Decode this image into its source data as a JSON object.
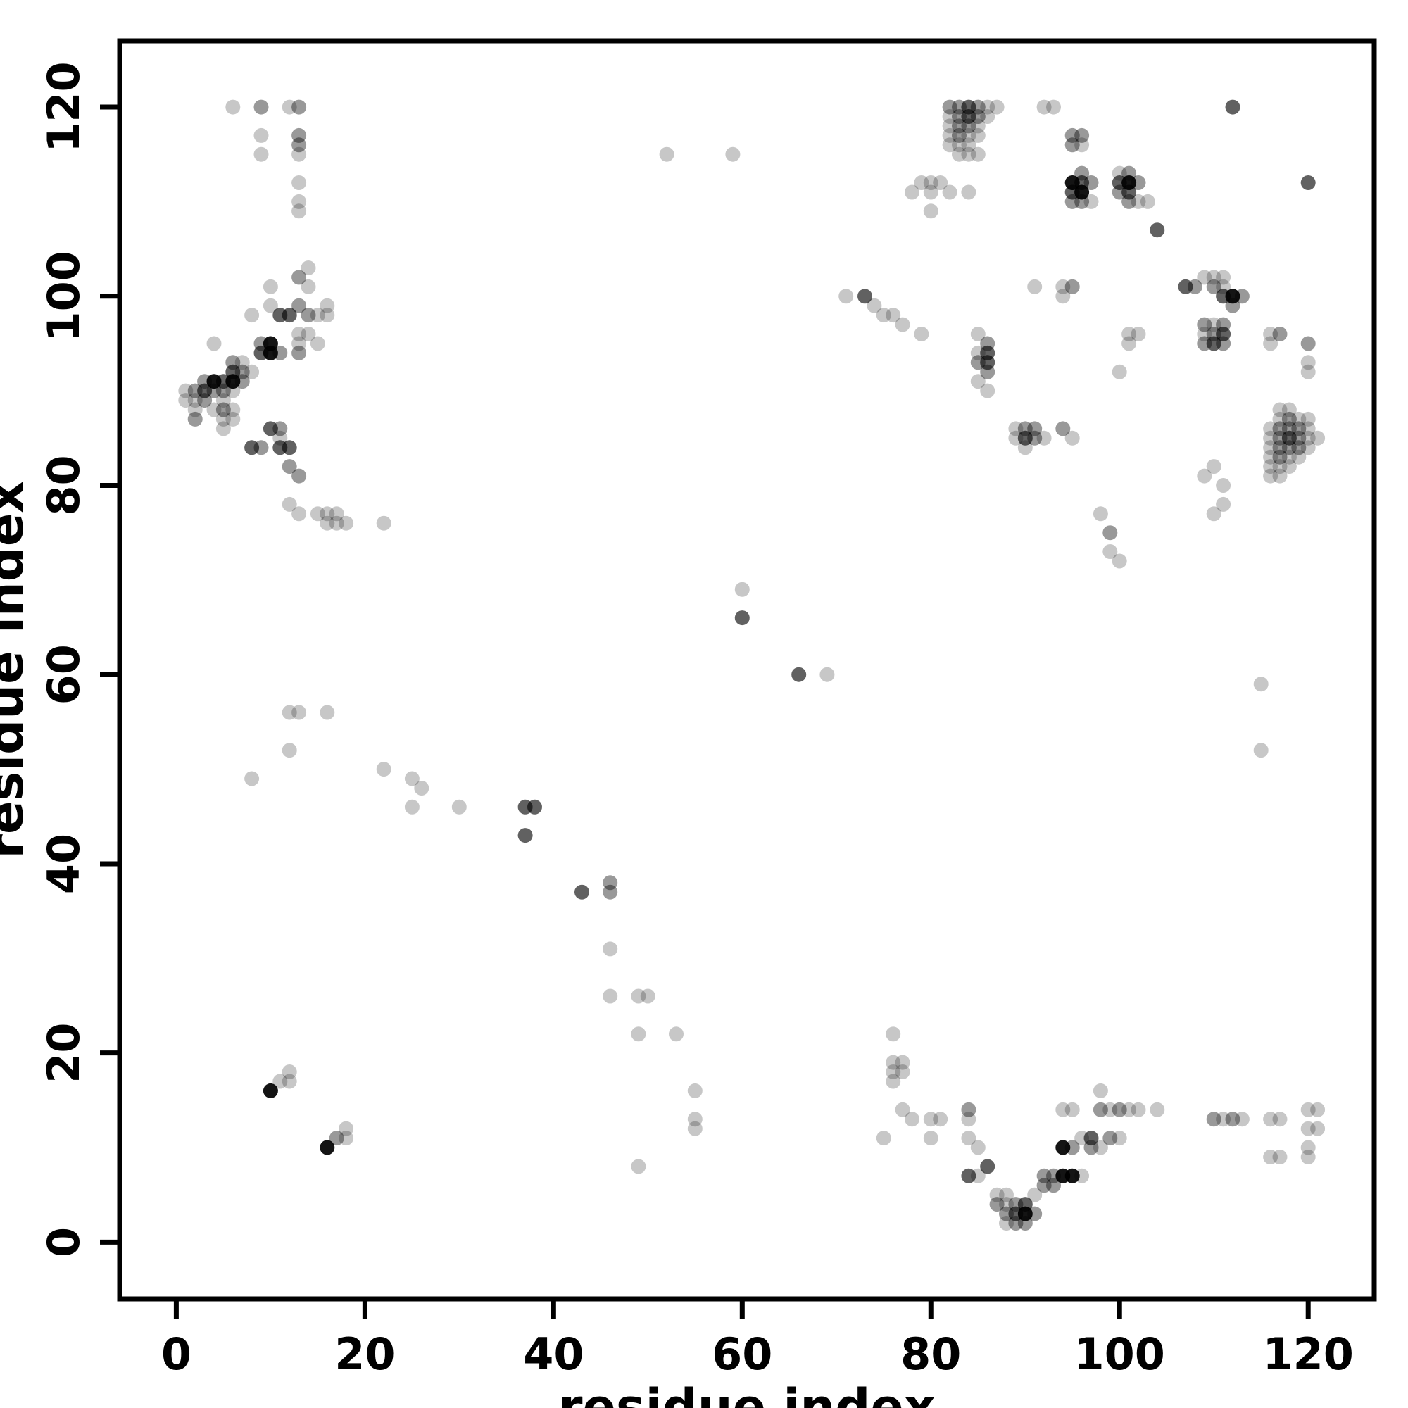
{
  "chart_data": {
    "type": "scatter",
    "title": "",
    "xlabel": "residue index",
    "ylabel": "residue index",
    "xlim": [
      -6,
      127
    ],
    "ylim": [
      -6,
      127
    ],
    "xticks": [
      0,
      20,
      40,
      60,
      80,
      100,
      120
    ],
    "yticks": [
      0,
      20,
      40,
      60,
      80,
      100,
      120
    ],
    "grid": false,
    "legend": "none",
    "point_color": "#000000",
    "point_radius_px": 10.5,
    "opacity_levels": [
      0.22,
      0.4,
      0.62,
      0.92
    ],
    "points": [
      [
        6,
        120,
        0
      ],
      [
        9,
        120,
        1
      ],
      [
        12,
        120,
        0
      ],
      [
        13,
        120,
        1
      ],
      [
        9,
        117,
        0
      ],
      [
        13,
        117,
        1
      ],
      [
        9,
        115,
        0
      ],
      [
        13,
        116,
        1
      ],
      [
        13,
        115,
        0
      ],
      [
        13,
        112,
        0
      ],
      [
        13,
        110,
        0
      ],
      [
        13,
        109,
        0
      ],
      [
        14,
        103,
        0
      ],
      [
        13,
        102,
        1
      ],
      [
        10,
        101,
        0
      ],
      [
        14,
        101,
        0
      ],
      [
        10,
        99,
        0
      ],
      [
        13,
        99,
        1
      ],
      [
        16,
        99,
        0
      ],
      [
        8,
        98,
        0
      ],
      [
        11,
        98,
        2
      ],
      [
        12,
        98,
        2
      ],
      [
        14,
        98,
        1
      ],
      [
        15,
        98,
        0
      ],
      [
        16,
        98,
        0
      ],
      [
        13,
        96,
        0
      ],
      [
        14,
        96,
        0
      ],
      [
        4,
        95,
        0
      ],
      [
        9,
        95,
        1
      ],
      [
        10,
        95,
        3
      ],
      [
        13,
        95,
        0
      ],
      [
        15,
        95,
        0
      ],
      [
        9,
        94,
        2
      ],
      [
        10,
        94,
        3
      ],
      [
        11,
        94,
        1
      ],
      [
        13,
        94,
        1
      ],
      [
        6,
        93,
        1
      ],
      [
        7,
        93,
        0
      ],
      [
        6,
        92,
        2
      ],
      [
        7,
        92,
        1
      ],
      [
        8,
        92,
        0
      ],
      [
        3,
        91,
        1
      ],
      [
        4,
        91,
        3
      ],
      [
        5,
        91,
        2
      ],
      [
        6,
        91,
        3
      ],
      [
        7,
        91,
        1
      ],
      [
        1,
        90,
        0
      ],
      [
        2,
        90,
        1
      ],
      [
        3,
        90,
        2
      ],
      [
        4,
        90,
        1
      ],
      [
        5,
        90,
        1
      ],
      [
        6,
        90,
        0
      ],
      [
        1,
        89,
        0
      ],
      [
        2,
        89,
        0
      ],
      [
        3,
        89,
        1
      ],
      [
        5,
        89,
        0
      ],
      [
        2,
        88,
        0
      ],
      [
        4,
        88,
        0
      ],
      [
        5,
        88,
        1
      ],
      [
        6,
        88,
        0
      ],
      [
        2,
        87,
        1
      ],
      [
        5,
        87,
        0
      ],
      [
        6,
        87,
        0
      ],
      [
        5,
        86,
        0
      ],
      [
        10,
        86,
        2
      ],
      [
        11,
        86,
        1
      ],
      [
        11,
        85,
        0
      ],
      [
        8,
        84,
        2
      ],
      [
        9,
        84,
        1
      ],
      [
        11,
        84,
        2
      ],
      [
        12,
        84,
        2
      ],
      [
        12,
        82,
        1
      ],
      [
        13,
        81,
        1
      ],
      [
        12,
        78,
        0
      ],
      [
        13,
        77,
        0
      ],
      [
        15,
        77,
        0
      ],
      [
        16,
        77,
        0
      ],
      [
        17,
        77,
        0
      ],
      [
        16,
        76,
        0
      ],
      [
        17,
        76,
        0
      ],
      [
        18,
        76,
        0
      ],
      [
        22,
        76,
        0
      ],
      [
        12,
        56,
        0
      ],
      [
        13,
        56,
        0
      ],
      [
        16,
        56,
        0
      ],
      [
        12,
        52,
        0
      ],
      [
        8,
        49,
        0
      ],
      [
        22,
        50,
        0
      ],
      [
        25,
        49,
        0
      ],
      [
        26,
        48,
        0
      ],
      [
        25,
        46,
        0
      ],
      [
        30,
        46,
        0
      ],
      [
        37,
        46,
        2
      ],
      [
        38,
        46,
        2
      ],
      [
        37,
        43,
        2
      ],
      [
        43,
        37,
        2
      ],
      [
        46,
        38,
        1
      ],
      [
        46,
        37,
        1
      ],
      [
        46,
        31,
        0
      ],
      [
        46,
        26,
        0
      ],
      [
        49,
        26,
        0
      ],
      [
        50,
        26,
        0
      ],
      [
        49,
        22,
        0
      ],
      [
        53,
        22,
        0
      ],
      [
        55,
        16,
        0
      ],
      [
        55,
        13,
        0
      ],
      [
        55,
        12,
        0
      ],
      [
        49,
        8,
        0
      ],
      [
        52,
        115,
        0
      ],
      [
        59,
        115,
        0
      ],
      [
        60,
        69,
        0
      ],
      [
        60,
        66,
        2
      ],
      [
        66,
        60,
        2
      ],
      [
        69,
        60,
        0
      ],
      [
        10,
        16,
        3
      ],
      [
        11,
        17,
        0
      ],
      [
        12,
        18,
        0
      ],
      [
        12,
        17,
        0
      ],
      [
        16,
        10,
        3
      ],
      [
        17,
        11,
        1
      ],
      [
        18,
        12,
        0
      ],
      [
        18,
        11,
        0
      ],
      [
        82,
        120,
        1
      ],
      [
        83,
        120,
        1
      ],
      [
        84,
        120,
        2
      ],
      [
        85,
        120,
        1
      ],
      [
        86,
        120,
        0
      ],
      [
        87,
        120,
        0
      ],
      [
        82,
        119,
        0
      ],
      [
        83,
        119,
        1
      ],
      [
        84,
        119,
        2
      ],
      [
        85,
        119,
        1
      ],
      [
        86,
        119,
        0
      ],
      [
        82,
        118,
        0
      ],
      [
        83,
        118,
        1
      ],
      [
        84,
        118,
        1
      ],
      [
        85,
        118,
        0
      ],
      [
        82,
        117,
        0
      ],
      [
        83,
        117,
        1
      ],
      [
        84,
        117,
        0
      ],
      [
        85,
        117,
        0
      ],
      [
        82,
        116,
        0
      ],
      [
        83,
        116,
        0
      ],
      [
        84,
        116,
        0
      ],
      [
        83,
        115,
        0
      ],
      [
        84,
        115,
        0
      ],
      [
        85,
        115,
        0
      ],
      [
        92,
        120,
        0
      ],
      [
        93,
        120,
        0
      ],
      [
        95,
        117,
        1
      ],
      [
        96,
        117,
        1
      ],
      [
        95,
        116,
        1
      ],
      [
        96,
        116,
        0
      ],
      [
        96,
        113,
        1
      ],
      [
        95,
        112,
        3
      ],
      [
        96,
        112,
        2
      ],
      [
        97,
        112,
        1
      ],
      [
        95,
        111,
        2
      ],
      [
        96,
        111,
        3
      ],
      [
        95,
        110,
        1
      ],
      [
        96,
        110,
        1
      ],
      [
        97,
        110,
        0
      ],
      [
        79,
        112,
        0
      ],
      [
        80,
        112,
        0
      ],
      [
        81,
        112,
        0
      ],
      [
        78,
        111,
        0
      ],
      [
        80,
        111,
        0
      ],
      [
        82,
        111,
        0
      ],
      [
        84,
        111,
        0
      ],
      [
        80,
        109,
        0
      ],
      [
        100,
        113,
        0
      ],
      [
        101,
        113,
        1
      ],
      [
        100,
        112,
        2
      ],
      [
        101,
        112,
        3
      ],
      [
        102,
        112,
        1
      ],
      [
        100,
        111,
        1
      ],
      [
        101,
        111,
        2
      ],
      [
        101,
        110,
        1
      ],
      [
        102,
        110,
        0
      ],
      [
        103,
        110,
        0
      ],
      [
        104,
        107,
        2
      ],
      [
        112,
        120,
        2
      ],
      [
        120,
        112,
        2
      ],
      [
        71,
        100,
        0
      ],
      [
        73,
        100,
        2
      ],
      [
        74,
        99,
        0
      ],
      [
        75,
        98,
        0
      ],
      [
        76,
        98,
        0
      ],
      [
        77,
        97,
        0
      ],
      [
        79,
        96,
        0
      ],
      [
        91,
        101,
        0
      ],
      [
        94,
        101,
        0
      ],
      [
        95,
        101,
        1
      ],
      [
        94,
        100,
        0
      ],
      [
        85,
        96,
        0
      ],
      [
        86,
        95,
        1
      ],
      [
        85,
        94,
        0
      ],
      [
        86,
        94,
        2
      ],
      [
        85,
        93,
        1
      ],
      [
        86,
        93,
        2
      ],
      [
        86,
        92,
        1
      ],
      [
        85,
        91,
        0
      ],
      [
        86,
        90,
        0
      ],
      [
        101,
        96,
        0
      ],
      [
        102,
        96,
        0
      ],
      [
        101,
        95,
        0
      ],
      [
        100,
        92,
        0
      ],
      [
        89,
        86,
        0
      ],
      [
        90,
        86,
        1
      ],
      [
        91,
        86,
        1
      ],
      [
        89,
        85,
        0
      ],
      [
        90,
        85,
        2
      ],
      [
        91,
        85,
        1
      ],
      [
        92,
        85,
        0
      ],
      [
        94,
        86,
        1
      ],
      [
        95,
        85,
        0
      ],
      [
        90,
        84,
        0
      ],
      [
        98,
        77,
        0
      ],
      [
        99,
        75,
        1
      ],
      [
        99,
        73,
        0
      ],
      [
        100,
        72,
        0
      ],
      [
        107,
        101,
        2
      ],
      [
        108,
        101,
        1
      ],
      [
        109,
        102,
        0
      ],
      [
        110,
        102,
        0
      ],
      [
        111,
        102,
        0
      ],
      [
        110,
        101,
        1
      ],
      [
        111,
        101,
        0
      ],
      [
        111,
        100,
        2
      ],
      [
        112,
        100,
        3
      ],
      [
        113,
        100,
        1
      ],
      [
        112,
        99,
        1
      ],
      [
        109,
        97,
        1
      ],
      [
        110,
        97,
        0
      ],
      [
        111,
        97,
        1
      ],
      [
        109,
        96,
        0
      ],
      [
        110,
        96,
        1
      ],
      [
        111,
        96,
        2
      ],
      [
        109,
        95,
        1
      ],
      [
        110,
        95,
        2
      ],
      [
        111,
        95,
        1
      ],
      [
        116,
        96,
        0
      ],
      [
        117,
        96,
        1
      ],
      [
        116,
        95,
        0
      ],
      [
        120,
        95,
        1
      ],
      [
        120,
        93,
        0
      ],
      [
        120,
        92,
        0
      ],
      [
        109,
        81,
        0
      ],
      [
        110,
        82,
        0
      ],
      [
        111,
        80,
        0
      ],
      [
        111,
        78,
        0
      ],
      [
        110,
        77,
        0
      ],
      [
        117,
        88,
        0
      ],
      [
        118,
        88,
        0
      ],
      [
        117,
        87,
        0
      ],
      [
        118,
        87,
        1
      ],
      [
        119,
        87,
        0
      ],
      [
        120,
        87,
        0
      ],
      [
        116,
        86,
        0
      ],
      [
        117,
        86,
        1
      ],
      [
        118,
        86,
        1
      ],
      [
        119,
        86,
        1
      ],
      [
        120,
        86,
        0
      ],
      [
        116,
        85,
        0
      ],
      [
        117,
        85,
        1
      ],
      [
        118,
        85,
        2
      ],
      [
        119,
        85,
        1
      ],
      [
        120,
        85,
        0
      ],
      [
        121,
        85,
        0
      ],
      [
        116,
        84,
        0
      ],
      [
        117,
        84,
        1
      ],
      [
        118,
        84,
        1
      ],
      [
        119,
        84,
        1
      ],
      [
        120,
        84,
        0
      ],
      [
        116,
        83,
        0
      ],
      [
        117,
        83,
        1
      ],
      [
        118,
        83,
        0
      ],
      [
        119,
        83,
        0
      ],
      [
        116,
        82,
        0
      ],
      [
        117,
        82,
        0
      ],
      [
        118,
        82,
        0
      ],
      [
        116,
        81,
        0
      ],
      [
        117,
        81,
        0
      ],
      [
        115,
        59,
        0
      ],
      [
        115,
        52,
        0
      ],
      [
        76,
        22,
        0
      ],
      [
        76,
        19,
        0
      ],
      [
        77,
        19,
        0
      ],
      [
        76,
        18,
        0
      ],
      [
        77,
        18,
        0
      ],
      [
        76,
        17,
        0
      ],
      [
        77,
        14,
        0
      ],
      [
        78,
        13,
        0
      ],
      [
        75,
        11,
        0
      ],
      [
        80,
        13,
        0
      ],
      [
        81,
        13,
        0
      ],
      [
        80,
        11,
        0
      ],
      [
        84,
        14,
        1
      ],
      [
        84,
        13,
        0
      ],
      [
        84,
        11,
        0
      ],
      [
        85,
        10,
        0
      ],
      [
        86,
        8,
        2
      ],
      [
        84,
        7,
        2
      ],
      [
        85,
        7,
        0
      ],
      [
        87,
        5,
        0
      ],
      [
        88,
        5,
        0
      ],
      [
        87,
        4,
        1
      ],
      [
        88,
        4,
        0
      ],
      [
        89,
        4,
        1
      ],
      [
        90,
        4,
        2
      ],
      [
        88,
        3,
        1
      ],
      [
        89,
        3,
        2
      ],
      [
        90,
        3,
        3
      ],
      [
        91,
        3,
        1
      ],
      [
        88,
        2,
        0
      ],
      [
        89,
        2,
        1
      ],
      [
        90,
        2,
        1
      ],
      [
        91,
        5,
        0
      ],
      [
        92,
        6,
        1
      ],
      [
        93,
        6,
        1
      ],
      [
        92,
        7,
        1
      ],
      [
        93,
        7,
        1
      ],
      [
        94,
        7,
        3
      ],
      [
        95,
        7,
        3
      ],
      [
        96,
        7,
        0
      ],
      [
        94,
        10,
        3
      ],
      [
        95,
        10,
        1
      ],
      [
        96,
        11,
        0
      ],
      [
        97,
        11,
        2
      ],
      [
        97,
        10,
        1
      ],
      [
        98,
        10,
        0
      ],
      [
        99,
        11,
        1
      ],
      [
        100,
        11,
        0
      ],
      [
        94,
        14,
        0
      ],
      [
        95,
        14,
        0
      ],
      [
        98,
        14,
        1
      ],
      [
        99,
        14,
        0
      ],
      [
        100,
        14,
        1
      ],
      [
        101,
        14,
        0
      ],
      [
        102,
        14,
        0
      ],
      [
        98,
        16,
        0
      ],
      [
        104,
        14,
        0
      ],
      [
        110,
        13,
        1
      ],
      [
        111,
        13,
        0
      ],
      [
        112,
        13,
        1
      ],
      [
        113,
        13,
        0
      ],
      [
        116,
        13,
        0
      ],
      [
        117,
        13,
        0
      ],
      [
        120,
        14,
        0
      ],
      [
        121,
        14,
        0
      ],
      [
        120,
        12,
        0
      ],
      [
        121,
        12,
        0
      ],
      [
        116,
        9,
        0
      ],
      [
        117,
        9,
        0
      ],
      [
        120,
        10,
        0
      ],
      [
        120,
        9,
        0
      ]
    ]
  }
}
